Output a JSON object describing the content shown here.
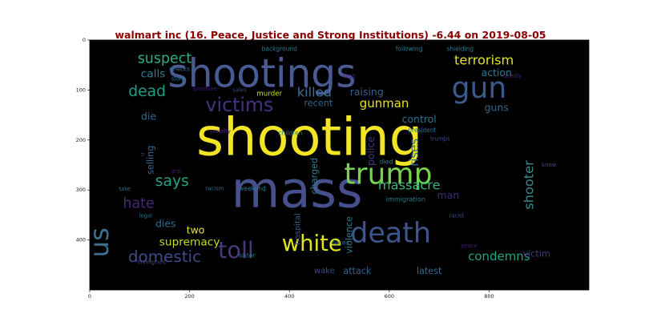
{
  "chart_data": {
    "type": "wordcloud",
    "title": "walmart inc (16. Peace, Justice and Strong Institutions) -6.44 on 2019-08-05",
    "title_color": "#8b0000",
    "background": "#000000",
    "x_ticks": [
      0,
      200,
      400,
      600,
      800
    ],
    "y_ticks": [
      0,
      100,
      200,
      300,
      400
    ],
    "xlim": [
      0,
      1000
    ],
    "ylim": [
      500,
      0
    ],
    "words": [
      {
        "text": "shooting",
        "x": 440,
        "y": 195,
        "size": 105,
        "color": "#f2e526"
      },
      {
        "text": "mass",
        "x": 415,
        "y": 300,
        "size": 100,
        "color": "#46508c"
      },
      {
        "text": "shootings",
        "x": 345,
        "y": 68,
        "size": 78,
        "color": "#4a5a92"
      },
      {
        "text": "trump",
        "x": 598,
        "y": 268,
        "size": 58,
        "color": "#79d151"
      },
      {
        "text": "gun",
        "x": 780,
        "y": 95,
        "size": 58,
        "color": "#3a5a8e"
      },
      {
        "text": "death",
        "x": 603,
        "y": 387,
        "size": 56,
        "color": "#3e548a"
      },
      {
        "text": "white",
        "x": 445,
        "y": 408,
        "size": 44,
        "color": "#e2e41d"
      },
      {
        "text": "victims",
        "x": 300,
        "y": 130,
        "size": 38,
        "color": "#46327e"
      },
      {
        "text": "toll",
        "x": 293,
        "y": 420,
        "size": 46,
        "color": "#4a3a7c"
      },
      {
        "text": "us",
        "x": 19,
        "y": 405,
        "size": 52,
        "color": "#3e6f8e"
      },
      {
        "text": "domestic",
        "x": 150,
        "y": 433,
        "size": 32,
        "color": "#3f4a8a"
      },
      {
        "text": "suspect",
        "x": 150,
        "y": 38,
        "size": 28,
        "color": "#2cb07e"
      },
      {
        "text": "terrorism",
        "x": 790,
        "y": 40,
        "size": 26,
        "color": "#e2e41d"
      },
      {
        "text": "dead",
        "x": 115,
        "y": 103,
        "size": 30,
        "color": "#1f9e89"
      },
      {
        "text": "killed",
        "x": 450,
        "y": 104,
        "size": 26,
        "color": "#3f6f98"
      },
      {
        "text": "gunman",
        "x": 590,
        "y": 127,
        "size": 24,
        "color": "#e7e419"
      },
      {
        "text": "says",
        "x": 165,
        "y": 283,
        "size": 30,
        "color": "#20a486"
      },
      {
        "text": "hate",
        "x": 98,
        "y": 328,
        "size": 28,
        "color": "#482878"
      },
      {
        "text": "massacre",
        "x": 640,
        "y": 290,
        "size": 26,
        "color": "#35b779"
      },
      {
        "text": "supremacy",
        "x": 200,
        "y": 405,
        "size": 22,
        "color": "#bfdf25"
      },
      {
        "text": "condemns",
        "x": 820,
        "y": 433,
        "size": 24,
        "color": "#20a386"
      },
      {
        "text": "shooter",
        "x": 880,
        "y": 290,
        "size": 26,
        "color": "#3b8a8c"
      },
      {
        "text": "calls",
        "x": 127,
        "y": 68,
        "size": 22,
        "color": "#26828e"
      },
      {
        "text": "action",
        "x": 815,
        "y": 65,
        "size": 20,
        "color": "#2a7a8e"
      },
      {
        "text": "raising",
        "x": 555,
        "y": 103,
        "size": 20,
        "color": "#3f5f90"
      },
      {
        "text": "recent",
        "x": 458,
        "y": 127,
        "size": 18,
        "color": "#31688e"
      },
      {
        "text": "guns",
        "x": 815,
        "y": 135,
        "size": 20,
        "color": "#35678c"
      },
      {
        "text": "control",
        "x": 660,
        "y": 158,
        "size": 20,
        "color": "#2a778e"
      },
      {
        "text": "die",
        "x": 118,
        "y": 152,
        "size": 20,
        "color": "#30698e"
      },
      {
        "text": "rises",
        "x": 650,
        "y": 225,
        "size": 24,
        "color": "#2e6e8e"
      },
      {
        "text": "police",
        "x": 563,
        "y": 222,
        "size": 20,
        "color": "#3b3b81"
      },
      {
        "text": "charged",
        "x": 450,
        "y": 272,
        "size": 18,
        "color": "#317a8e"
      },
      {
        "text": "selling",
        "x": 122,
        "y": 240,
        "size": 18,
        "color": "#37678d"
      },
      {
        "text": "dies",
        "x": 152,
        "y": 367,
        "size": 20,
        "color": "#306a8e"
      },
      {
        "text": "two",
        "x": 212,
        "y": 380,
        "size": 20,
        "color": "#e9e51a"
      },
      {
        "text": "man",
        "x": 718,
        "y": 310,
        "size": 20,
        "color": "#3f2a78"
      },
      {
        "text": "violence",
        "x": 520,
        "y": 390,
        "size": 18,
        "color": "#2a7a8e"
      },
      {
        "text": "victim",
        "x": 895,
        "y": 428,
        "size": 18,
        "color": "#3b3a80"
      },
      {
        "text": "latest",
        "x": 680,
        "y": 462,
        "size": 18,
        "color": "#306b8e"
      },
      {
        "text": "attack",
        "x": 536,
        "y": 462,
        "size": 18,
        "color": "#2e678e"
      },
      {
        "text": "wake",
        "x": 470,
        "y": 462,
        "size": 16,
        "color": "#3e4a89"
      },
      {
        "text": "hospital",
        "x": 417,
        "y": 378,
        "size": 16,
        "color": "#39568c"
      },
      {
        "text": "murder",
        "x": 360,
        "y": 108,
        "size": 14,
        "color": "#cde11d"
      },
      {
        "text": "background",
        "x": 380,
        "y": 18,
        "size": 12,
        "color": "#2b7a8e"
      },
      {
        "text": "following",
        "x": 640,
        "y": 18,
        "size": 12,
        "color": "#2e7a8e"
      },
      {
        "text": "shielding",
        "x": 742,
        "y": 18,
        "size": 12,
        "color": "#2b7a8e"
      },
      {
        "text": "checks",
        "x": 180,
        "y": 58,
        "size": 12,
        "color": "#2e6e8e"
      },
      {
        "text": "story",
        "x": 177,
        "y": 78,
        "size": 11,
        "color": "#2a778e"
      },
      {
        "text": "stop",
        "x": 520,
        "y": 72,
        "size": 12,
        "color": "#482173"
      },
      {
        "text": "deadly",
        "x": 847,
        "y": 72,
        "size": 11,
        "color": "#482173"
      },
      {
        "text": "pressure",
        "x": 231,
        "y": 98,
        "size": 11,
        "color": "#3f1f6e"
      },
      {
        "text": "sales",
        "x": 300,
        "y": 100,
        "size": 11,
        "color": "#3e4a89"
      },
      {
        "text": "penalty",
        "x": 262,
        "y": 183,
        "size": 11,
        "color": "#482173"
      },
      {
        "text": "children",
        "x": 402,
        "y": 186,
        "size": 12,
        "color": "#2b7a8e"
      },
      {
        "text": "president",
        "x": 666,
        "y": 180,
        "size": 12,
        "color": "#2a6f8e"
      },
      {
        "text": "trumps",
        "x": 702,
        "y": 198,
        "size": 11,
        "color": "#3e4a89"
      },
      {
        "text": "u",
        "x": 106,
        "y": 229,
        "size": 11,
        "color": "#3d4a89"
      },
      {
        "text": "anti",
        "x": 174,
        "y": 263,
        "size": 11,
        "color": "#482173"
      },
      {
        "text": "know",
        "x": 920,
        "y": 250,
        "size": 11,
        "color": "#3e4a89"
      },
      {
        "text": "take",
        "x": 70,
        "y": 298,
        "size": 11,
        "color": "#2e6e8e"
      },
      {
        "text": "racism",
        "x": 250,
        "y": 297,
        "size": 11,
        "color": "#2e6e8e"
      },
      {
        "text": "weekend",
        "x": 326,
        "y": 297,
        "size": 12,
        "color": "#2b7a8e"
      },
      {
        "text": "died",
        "x": 594,
        "y": 243,
        "size": 13,
        "color": "#2a778e"
      },
      {
        "text": "immigration",
        "x": 633,
        "y": 318,
        "size": 13,
        "color": "#2b7a8e"
      },
      {
        "text": "racist",
        "x": 735,
        "y": 352,
        "size": 11,
        "color": "#3e4a89"
      },
      {
        "text": "legal",
        "x": 112,
        "y": 352,
        "size": 11,
        "color": "#2e6e8e"
      },
      {
        "text": "faces",
        "x": 503,
        "y": 405,
        "size": 13,
        "color": "#2e6e8e"
      },
      {
        "text": "sister",
        "x": 315,
        "y": 431,
        "size": 12,
        "color": "#2b7a8e"
      },
      {
        "text": "immigrant",
        "x": 124,
        "y": 445,
        "size": 11,
        "color": "#3e4a89"
      },
      {
        "text": "peace",
        "x": 760,
        "y": 412,
        "size": 11,
        "color": "#3f1f6e"
      }
    ]
  }
}
